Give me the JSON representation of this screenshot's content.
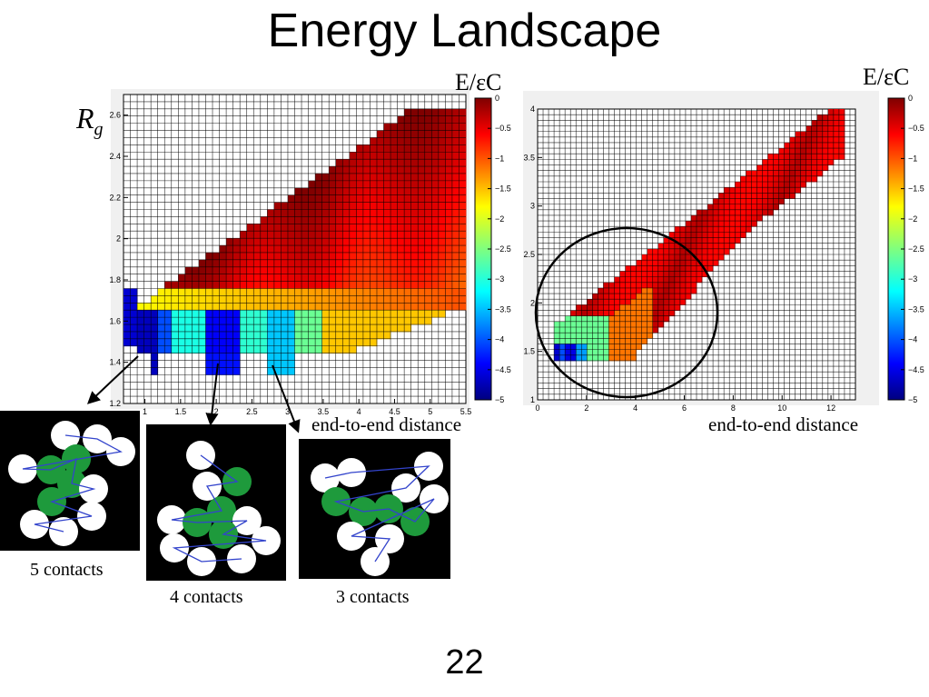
{
  "slide": {
    "title": "Energy Landscape",
    "page_number": "22"
  },
  "labels": {
    "colorbar_left": "E/εC",
    "colorbar_right": "E/εC",
    "ylabel_left": "R",
    "ylabel_left_sub": "g",
    "xlabel_left": "end-to-end distance",
    "xlabel_right": "end-to-end distance"
  },
  "colors": {
    "bead_green": "#1e9a3c",
    "bead_white": "#ffffff",
    "chain_blue": "#3344cc",
    "panel_black": "#000000"
  },
  "panels": [
    {
      "caption": "5 contacts"
    },
    {
      "caption": "4 contacts"
    },
    {
      "caption": "3 contacts"
    }
  ],
  "chart_data": [
    {
      "type": "heatmap",
      "x_ticks": [
        "1",
        "1.5",
        "2",
        "2.5",
        "3",
        "3.5",
        "4",
        "4.5",
        "5",
        "5.5"
      ],
      "y_ticks": [
        "1.2",
        "1.4",
        "1.6",
        "1.8",
        "2",
        "2.2",
        "2.4",
        "2.6"
      ],
      "xlim": [
        0.7,
        5.5
      ],
      "ylim": [
        1.2,
        2.7
      ],
      "colorbar": {
        "label": "E/εC",
        "ticks": [
          "0",
          "−0.5",
          "−1",
          "−1.5",
          "−2",
          "−2.5",
          "−3",
          "−3.5",
          "−4",
          "−4.5",
          "−5"
        ],
        "range": [
          -5,
          0
        ]
      },
      "grid": true
    },
    {
      "type": "heatmap",
      "x_ticks": [
        "0",
        "2",
        "4",
        "6",
        "8",
        "10",
        "12"
      ],
      "y_ticks": [
        "1",
        "1.5",
        "2",
        "2.5",
        "3",
        "3.5",
        "4"
      ],
      "xlim": [
        0,
        13
      ],
      "ylim": [
        1,
        4
      ],
      "colorbar": {
        "label": "E/εC",
        "ticks": [
          "0",
          "−0.5",
          "−1",
          "−1.5",
          "−2",
          "−2.5",
          "−3",
          "−3.5",
          "−4",
          "−4.5",
          "−5"
        ],
        "range": [
          -5,
          0
        ]
      },
      "grid": true,
      "annotation": "circle"
    }
  ]
}
